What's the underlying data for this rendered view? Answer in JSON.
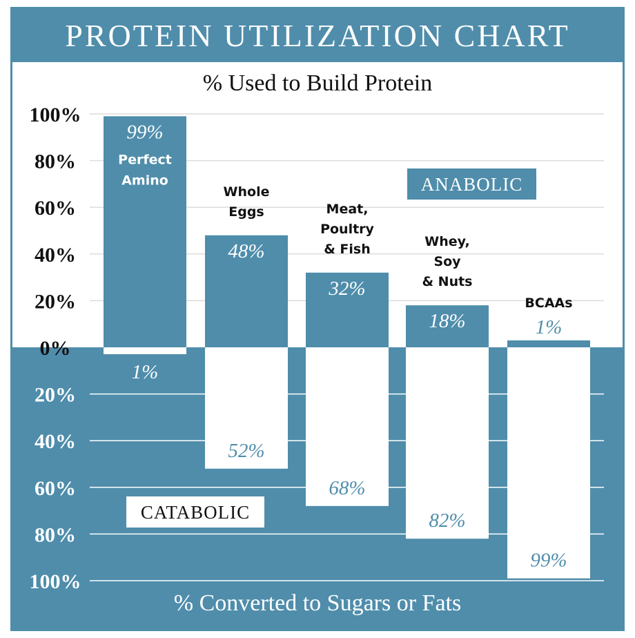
{
  "chart_data": {
    "type": "bar",
    "title": "PROTEIN UTILIZATION CHART",
    "top_axis_label": "% Used to Build Protein",
    "bottom_axis_label": "% Converted to Sugars or Fats",
    "categories": [
      "Perfect Amino",
      "Whole Eggs",
      "Meat, Poultry & Fish",
      "Whey, Soy & Nuts",
      "BCAAs"
    ],
    "series": [
      {
        "name": "ANABOLIC",
        "values": [
          99,
          48,
          32,
          18,
          1
        ],
        "labels": [
          "99%",
          "48%",
          "32%",
          "18%",
          "1%"
        ]
      },
      {
        "name": "CATABOLIC",
        "values": [
          1,
          52,
          68,
          82,
          99
        ],
        "labels": [
          "1%",
          "52%",
          "68%",
          "82%",
          "99%"
        ]
      }
    ],
    "y_ticks_top": [
      "100%",
      "80%",
      "60%",
      "40%",
      "20%",
      "0%"
    ],
    "y_ticks_bottom": [
      "20%",
      "40%",
      "60%",
      "80%",
      "100%"
    ],
    "ylim": [
      -100,
      100
    ],
    "grid": true,
    "colors": {
      "primary": "#4f8dab",
      "background": "#ffffff"
    }
  }
}
